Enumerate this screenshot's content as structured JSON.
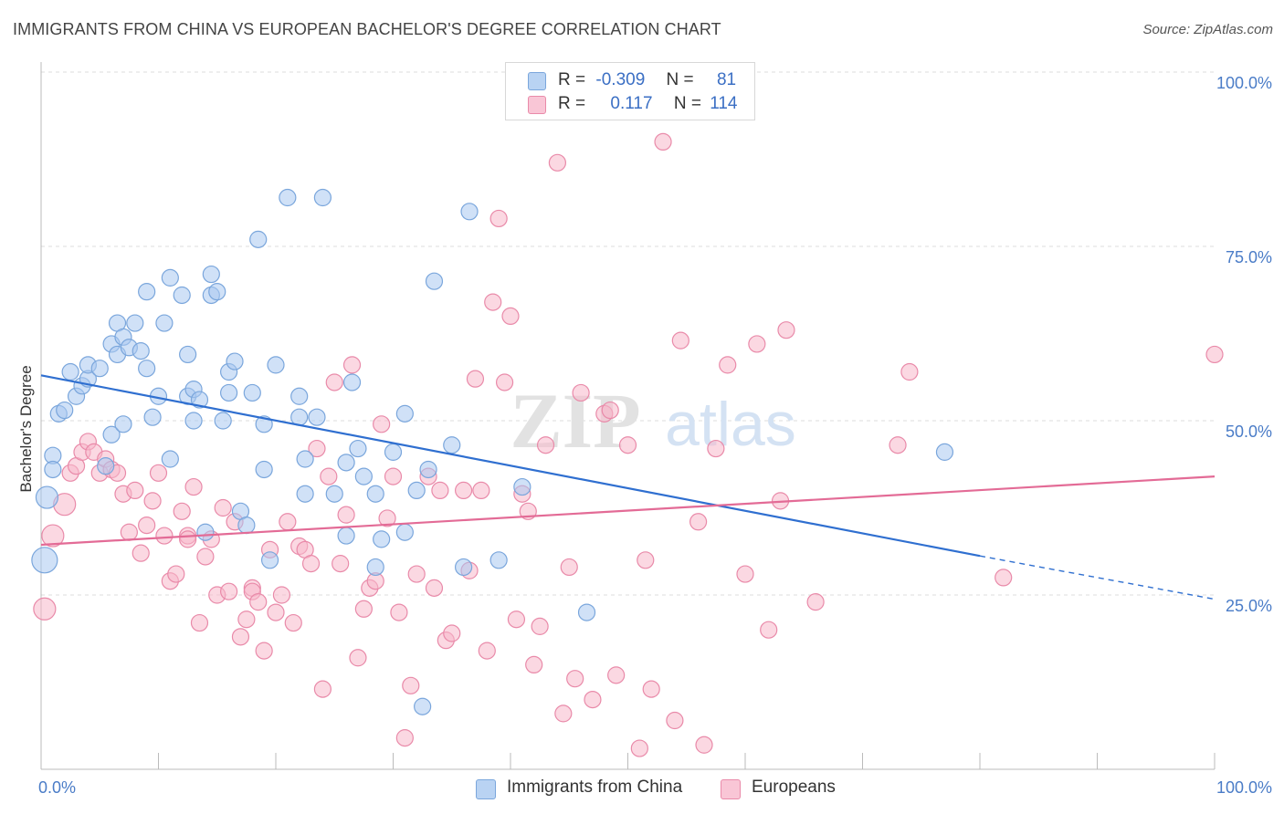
{
  "title": "IMMIGRANTS FROM CHINA VS EUROPEAN BACHELOR'S DEGREE CORRELATION CHART",
  "source": "Source: ZipAtlas.com",
  "watermark": {
    "zip": "ZIP",
    "atlas": "atlas"
  },
  "legend": {
    "rows": [
      {
        "r_label": "R =",
        "r_value": "-0.309",
        "n_label": "N =",
        "n_value": "81"
      },
      {
        "r_label": "R =",
        "r_value": "0.117",
        "n_label": "N =",
        "n_value": "114"
      }
    ]
  },
  "bottom_legend": {
    "china": "Immigrants from China",
    "europeans": "Europeans"
  },
  "colors": {
    "china_fill": "#a9c8f0",
    "china_stroke": "#7aa6dc",
    "china_line": "#2f6fd0",
    "europe_fill": "#f7b8cb",
    "europe_stroke": "#e98aa9",
    "europe_line": "#e36b96",
    "axis_label": "#4a7cc7",
    "grid": "#dddddd"
  },
  "chart_data": {
    "type": "scatter",
    "title": "IMMIGRANTS FROM CHINA VS EUROPEAN BACHELOR'S DEGREE CORRELATION CHART",
    "xlabel": "",
    "ylabel": "Bachelor's Degree",
    "xlim": [
      0,
      100
    ],
    "ylim": [
      0,
      100
    ],
    "x_tick_labels": [
      "0.0%",
      "100.0%"
    ],
    "y_ticks": [
      25,
      50,
      75,
      100
    ],
    "y_tick_labels": [
      "25.0%",
      "50.0%",
      "75.0%",
      "100.0%"
    ],
    "grid": true,
    "legend_position": "top-center",
    "series": [
      {
        "name": "Immigrants from China",
        "r": -0.309,
        "n": 81,
        "trend": {
          "x0": 0,
          "y0": 56.5,
          "x1": 80,
          "y1": 30.6,
          "dash_to_x": 100,
          "dash_to_y": 24.4
        },
        "points": [
          [
            0.3,
            30,
            3
          ],
          [
            0.5,
            39,
            2
          ],
          [
            1.0,
            45,
            1
          ],
          [
            1.0,
            43,
            1
          ],
          [
            1.5,
            51,
            1
          ],
          [
            2.0,
            51.5,
            1
          ],
          [
            2.5,
            57,
            1
          ],
          [
            3.0,
            53.5,
            1
          ],
          [
            3.5,
            55,
            1
          ],
          [
            4.0,
            56,
            1
          ],
          [
            4.0,
            58,
            1
          ],
          [
            5.0,
            57.5,
            1
          ],
          [
            5.5,
            43.5,
            1
          ],
          [
            6.0,
            61,
            1
          ],
          [
            6.0,
            48,
            1
          ],
          [
            6.5,
            59.5,
            1
          ],
          [
            6.5,
            64,
            1
          ],
          [
            7.0,
            49.5,
            1
          ],
          [
            7.0,
            62,
            1
          ],
          [
            7.5,
            60.5,
            1
          ],
          [
            8.0,
            64,
            1
          ],
          [
            8.5,
            60,
            1
          ],
          [
            9.0,
            57.5,
            1
          ],
          [
            9.0,
            68.5,
            1
          ],
          [
            9.5,
            50.5,
            1
          ],
          [
            10.0,
            53.5,
            1
          ],
          [
            10.5,
            64,
            1
          ],
          [
            11.0,
            44.5,
            1
          ],
          [
            11.0,
            70.5,
            1
          ],
          [
            12.0,
            68,
            1
          ],
          [
            12.5,
            59.5,
            1
          ],
          [
            12.5,
            53.5,
            1
          ],
          [
            13.0,
            54.5,
            1
          ],
          [
            13.0,
            50,
            1
          ],
          [
            13.5,
            53,
            1
          ],
          [
            14.0,
            34,
            1
          ],
          [
            14.5,
            71,
            1
          ],
          [
            14.5,
            68,
            1
          ],
          [
            15.0,
            68.5,
            1
          ],
          [
            15.5,
            50,
            1
          ],
          [
            16.0,
            54,
            1
          ],
          [
            16.0,
            57,
            1
          ],
          [
            16.5,
            58.5,
            1
          ],
          [
            17.0,
            37,
            1
          ],
          [
            17.5,
            35,
            1
          ],
          [
            18.0,
            54,
            1
          ],
          [
            18.5,
            76,
            1
          ],
          [
            19.0,
            43,
            1
          ],
          [
            19.0,
            49.5,
            1
          ],
          [
            19.5,
            30,
            1
          ],
          [
            20.0,
            58,
            1
          ],
          [
            21.0,
            82,
            1
          ],
          [
            22.0,
            50.5,
            1
          ],
          [
            22.0,
            53.5,
            1
          ],
          [
            22.5,
            39.5,
            1
          ],
          [
            22.5,
            44.5,
            1
          ],
          [
            23.5,
            50.5,
            1
          ],
          [
            24.0,
            82,
            1
          ],
          [
            25.0,
            39.5,
            1
          ],
          [
            26.0,
            33.5,
            1
          ],
          [
            26.0,
            44,
            1
          ],
          [
            26.5,
            55.5,
            1
          ],
          [
            27.0,
            46,
            1
          ],
          [
            27.5,
            42,
            1
          ],
          [
            28.5,
            29,
            1
          ],
          [
            28.5,
            39.5,
            1
          ],
          [
            29.0,
            33,
            1
          ],
          [
            30.0,
            45.5,
            1
          ],
          [
            31.0,
            34,
            1
          ],
          [
            31.0,
            51,
            1
          ],
          [
            32.0,
            40,
            1
          ],
          [
            32.5,
            9,
            1
          ],
          [
            33.0,
            43,
            1
          ],
          [
            33.5,
            70,
            1
          ],
          [
            35.0,
            46.5,
            1
          ],
          [
            36.0,
            29,
            1
          ],
          [
            36.5,
            80,
            1
          ],
          [
            39.0,
            30,
            1
          ],
          [
            41.0,
            40.5,
            1
          ],
          [
            46.5,
            22.5,
            1
          ],
          [
            77.0,
            45.5,
            1
          ]
        ]
      },
      {
        "name": "Europeans",
        "r": 0.117,
        "n": 114,
        "trend": {
          "x0": 0,
          "y0": 32.2,
          "x1": 100,
          "y1": 42
        },
        "points": [
          [
            0.3,
            23,
            2
          ],
          [
            1.0,
            33.5,
            2
          ],
          [
            2.0,
            38,
            2
          ],
          [
            2.5,
            42.5,
            1
          ],
          [
            3.0,
            43.5,
            1
          ],
          [
            3.5,
            45.5,
            1
          ],
          [
            4.0,
            47,
            1
          ],
          [
            4.5,
            45.5,
            1
          ],
          [
            5.0,
            42.5,
            1
          ],
          [
            5.5,
            44.5,
            1
          ],
          [
            6.0,
            43,
            1
          ],
          [
            6.5,
            42.5,
            1
          ],
          [
            7.0,
            39.5,
            1
          ],
          [
            7.5,
            34,
            1
          ],
          [
            8.0,
            40,
            1
          ],
          [
            8.5,
            31,
            1
          ],
          [
            9.0,
            35,
            1
          ],
          [
            9.5,
            38.5,
            1
          ],
          [
            10.0,
            42.5,
            1
          ],
          [
            10.5,
            33.5,
            1
          ],
          [
            11.0,
            27,
            1
          ],
          [
            11.5,
            28,
            1
          ],
          [
            12.0,
            37,
            1
          ],
          [
            12.5,
            33.5,
            1
          ],
          [
            12.5,
            33,
            1
          ],
          [
            13.0,
            40.5,
            1
          ],
          [
            13.5,
            21,
            1
          ],
          [
            14.0,
            30.5,
            1
          ],
          [
            14.5,
            33,
            1
          ],
          [
            15.0,
            25,
            1
          ],
          [
            15.5,
            37.5,
            1
          ],
          [
            16.0,
            25.5,
            1
          ],
          [
            16.5,
            35.5,
            1
          ],
          [
            17.0,
            19,
            1
          ],
          [
            17.5,
            21.5,
            1
          ],
          [
            18.0,
            26,
            1
          ],
          [
            18.0,
            25.5,
            1
          ],
          [
            18.5,
            24,
            1
          ],
          [
            19.0,
            17,
            1
          ],
          [
            19.5,
            31.5,
            1
          ],
          [
            20.0,
            22.5,
            1
          ],
          [
            20.5,
            25,
            1
          ],
          [
            21.0,
            35.5,
            1
          ],
          [
            21.5,
            21,
            1
          ],
          [
            22.0,
            32,
            1
          ],
          [
            22.5,
            31.5,
            1
          ],
          [
            23.0,
            29.5,
            1
          ],
          [
            23.5,
            46,
            1
          ],
          [
            24.0,
            11.5,
            1
          ],
          [
            24.5,
            42,
            1
          ],
          [
            25.0,
            55.5,
            1
          ],
          [
            25.5,
            29.5,
            1
          ],
          [
            26.0,
            36.5,
            1
          ],
          [
            26.5,
            58,
            1
          ],
          [
            27.0,
            16,
            1
          ],
          [
            27.5,
            23,
            1
          ],
          [
            28.0,
            26,
            1
          ],
          [
            28.5,
            27,
            1
          ],
          [
            29.0,
            49.5,
            1
          ],
          [
            29.5,
            36,
            1
          ],
          [
            30.0,
            42,
            1
          ],
          [
            30.5,
            22.5,
            1
          ],
          [
            31.0,
            4.5,
            1
          ],
          [
            31.5,
            12,
            1
          ],
          [
            32.0,
            28,
            1
          ],
          [
            33.0,
            42,
            1
          ],
          [
            33.5,
            26,
            1
          ],
          [
            34.0,
            40,
            1
          ],
          [
            34.5,
            18.5,
            1
          ],
          [
            35.0,
            19.5,
            1
          ],
          [
            36.0,
            40,
            1
          ],
          [
            36.5,
            28.5,
            1
          ],
          [
            37.0,
            56,
            1
          ],
          [
            37.5,
            40,
            1
          ],
          [
            38.0,
            17,
            1
          ],
          [
            38.5,
            67,
            1
          ],
          [
            39.0,
            79,
            1
          ],
          [
            39.5,
            55.5,
            1
          ],
          [
            40.0,
            65,
            1
          ],
          [
            40.5,
            21.5,
            1
          ],
          [
            41.0,
            39.5,
            1
          ],
          [
            41.5,
            37,
            1
          ],
          [
            42.0,
            15,
            1
          ],
          [
            42.5,
            20.5,
            1
          ],
          [
            43.0,
            46.5,
            1
          ],
          [
            44.0,
            87,
            1
          ],
          [
            44.5,
            8,
            1
          ],
          [
            45.0,
            29,
            1
          ],
          [
            45.5,
            13,
            1
          ],
          [
            46.0,
            54,
            1
          ],
          [
            47.0,
            10,
            1
          ],
          [
            48.0,
            51,
            1
          ],
          [
            48.5,
            51.5,
            1
          ],
          [
            49.0,
            13.5,
            1
          ],
          [
            50.0,
            46.5,
            1
          ],
          [
            51.0,
            3,
            1
          ],
          [
            51.5,
            30,
            1
          ],
          [
            52.0,
            11.5,
            1
          ],
          [
            53.0,
            90,
            1
          ],
          [
            54.0,
            7,
            1
          ],
          [
            54.5,
            61.5,
            1
          ],
          [
            56.0,
            35.5,
            1
          ],
          [
            56.5,
            3.5,
            1
          ],
          [
            57.5,
            46,
            1
          ],
          [
            58.5,
            58,
            1
          ],
          [
            60.0,
            28,
            1
          ],
          [
            61.0,
            61,
            1
          ],
          [
            62.0,
            20,
            1
          ],
          [
            63.0,
            38.5,
            1
          ],
          [
            63.5,
            63,
            1
          ],
          [
            66.0,
            24,
            1
          ],
          [
            73.0,
            46.5,
            1
          ],
          [
            74.0,
            57,
            1
          ],
          [
            82.0,
            27.5,
            1
          ],
          [
            100.0,
            59.5,
            1
          ]
        ]
      }
    ]
  }
}
